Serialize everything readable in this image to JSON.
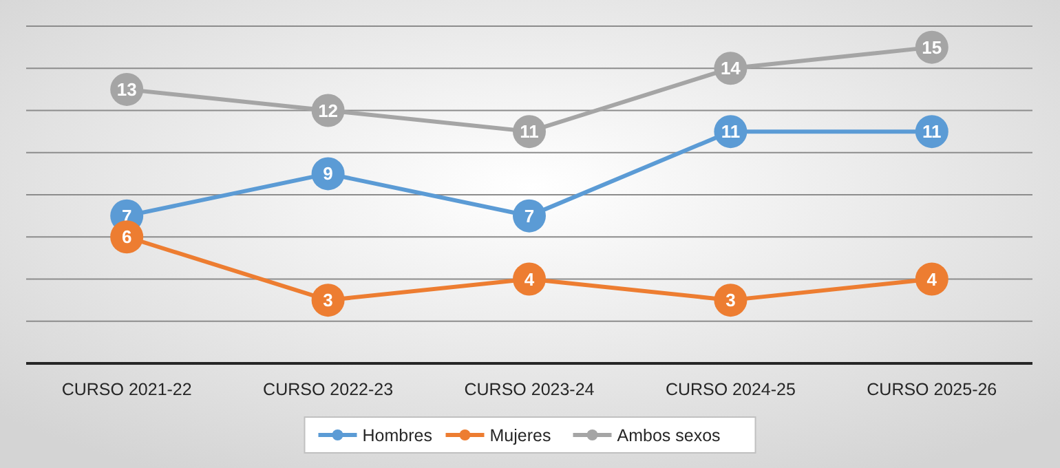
{
  "chart_data": {
    "type": "line",
    "categories": [
      "CURSO 2021-22",
      "CURSO 2022-23",
      "CURSO 2023-24",
      "CURSO 2024-25",
      "CURSO 2025-26"
    ],
    "series": [
      {
        "name": "Hombres",
        "color": "#5b9bd5",
        "values": [
          7,
          9,
          7,
          11,
          11
        ]
      },
      {
        "name": "Mujeres",
        "color": "#ed7d31",
        "values": [
          6,
          3,
          4,
          3,
          4
        ]
      },
      {
        "name": "Ambos sexos",
        "color": "#a5a5a5",
        "values": [
          13,
          12,
          11,
          14,
          15
        ]
      }
    ],
    "ylim": [
      0,
      16
    ],
    "yticks": [
      {
        "value": 0,
        "label": null
      },
      {
        "value": 2,
        "label": null
      },
      {
        "value": 4,
        "label": null
      },
      {
        "value": 6,
        "label": null
      },
      {
        "value": 8,
        "label": null
      },
      {
        "value": 10,
        "label": null
      },
      {
        "value": 12,
        "label": null
      },
      {
        "value": 14,
        "label": null
      },
      {
        "value": 16,
        "label": null
      }
    ],
    "grid": "y",
    "legend": "bottom",
    "marker": "circle",
    "line_style": "solid",
    "data_labels": true,
    "tick_labels": "x"
  }
}
